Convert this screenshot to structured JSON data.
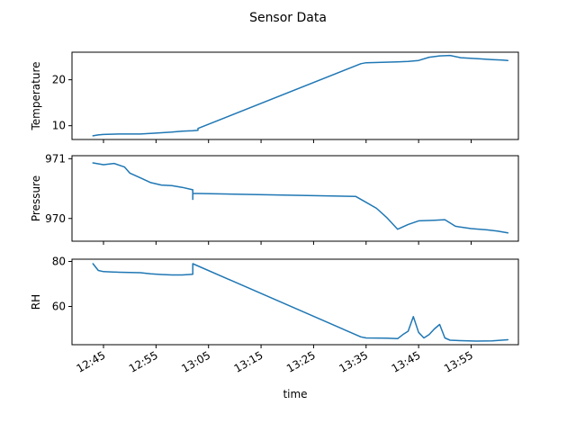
{
  "chart_data": {
    "type": "line",
    "title": "Sensor Data",
    "xlabel": "time",
    "x_ticks": [
      "12:45",
      "12:55",
      "13:05",
      "13:15",
      "13:25",
      "13:35",
      "13:45",
      "13:55"
    ],
    "xlim": [
      "12:39",
      "14:04"
    ],
    "line_color": "#1f77b4",
    "grid": false,
    "panels": [
      {
        "ylabel": "Temperature",
        "ylim": [
          7.0,
          26.0
        ],
        "y_ticks": [
          10,
          20
        ],
        "points": [
          [
            "12:43",
            7.8
          ],
          [
            "12:44",
            8.0
          ],
          [
            "12:45",
            8.1
          ],
          [
            "12:48",
            8.2
          ],
          [
            "12:52",
            8.2
          ],
          [
            "12:55",
            8.4
          ],
          [
            "12:58",
            8.6
          ],
          [
            "13:00",
            8.8
          ],
          [
            "13:02",
            8.9
          ],
          [
            "13:03",
            9.0
          ],
          [
            "13:03",
            9.4
          ],
          [
            "13:34",
            23.5
          ],
          [
            "13:35",
            23.7
          ],
          [
            "13:38",
            23.8
          ],
          [
            "13:41",
            23.9
          ],
          [
            "13:43",
            24.0
          ],
          [
            "13:45",
            24.2
          ],
          [
            "13:47",
            24.9
          ],
          [
            "13:49",
            25.2
          ],
          [
            "13:51",
            25.3
          ],
          [
            "13:53",
            24.8
          ],
          [
            "13:56",
            24.6
          ],
          [
            "13:59",
            24.4
          ],
          [
            "14:01",
            24.3
          ],
          [
            "14:02",
            24.2
          ]
        ]
      },
      {
        "ylabel": "Pressure",
        "ylim": [
          969.62,
          971.05
        ],
        "y_ticks": [
          970,
          971
        ],
        "points": [
          [
            "12:43",
            970.93
          ],
          [
            "12:45",
            970.9
          ],
          [
            "12:47",
            970.92
          ],
          [
            "12:49",
            970.86
          ],
          [
            "12:50",
            970.76
          ],
          [
            "12:52",
            970.68
          ],
          [
            "12:54",
            970.6
          ],
          [
            "12:56",
            970.56
          ],
          [
            "12:58",
            970.55
          ],
          [
            "13:00",
            970.52
          ],
          [
            "13:02",
            970.48
          ],
          [
            "13:02",
            970.32
          ],
          [
            "13:02",
            970.42
          ],
          [
            "13:33",
            970.37
          ],
          [
            "13:35",
            970.27
          ],
          [
            "13:37",
            970.17
          ],
          [
            "13:39",
            970.01
          ],
          [
            "13:41",
            969.82
          ],
          [
            "13:43",
            969.9
          ],
          [
            "13:45",
            969.96
          ],
          [
            "13:48",
            969.97
          ],
          [
            "13:50",
            969.98
          ],
          [
            "13:52",
            969.87
          ],
          [
            "13:55",
            969.83
          ],
          [
            "13:58",
            969.81
          ],
          [
            "14:00",
            969.79
          ],
          [
            "14:02",
            969.76
          ]
        ]
      },
      {
        "ylabel": "RH",
        "ylim": [
          43.0,
          81.0
        ],
        "y_ticks": [
          60,
          80
        ],
        "points": [
          [
            "12:43",
            79.0
          ],
          [
            "12:44",
            76.0
          ],
          [
            "12:45",
            75.5
          ],
          [
            "12:48",
            75.2
          ],
          [
            "12:52",
            75.0
          ],
          [
            "12:54",
            74.5
          ],
          [
            "12:56",
            74.2
          ],
          [
            "12:58",
            74.0
          ],
          [
            "13:00",
            74.0
          ],
          [
            "13:02",
            74.3
          ],
          [
            "13:02",
            79.0
          ],
          [
            "13:34",
            46.5
          ],
          [
            "13:35",
            46.0
          ],
          [
            "13:39",
            45.9
          ],
          [
            "13:41",
            45.7
          ],
          [
            "13:42",
            47.5
          ],
          [
            "13:43",
            49.0
          ],
          [
            "13:44",
            55.5
          ],
          [
            "13:45",
            48.5
          ],
          [
            "13:46",
            46.0
          ],
          [
            "13:47",
            47.5
          ],
          [
            "13:48",
            50.0
          ],
          [
            "13:49",
            52.0
          ],
          [
            "13:50",
            46.0
          ],
          [
            "13:51",
            45.0
          ],
          [
            "13:53",
            44.8
          ],
          [
            "13:56",
            44.6
          ],
          [
            "13:59",
            44.7
          ],
          [
            "14:02",
            45.2
          ]
        ]
      }
    ]
  }
}
